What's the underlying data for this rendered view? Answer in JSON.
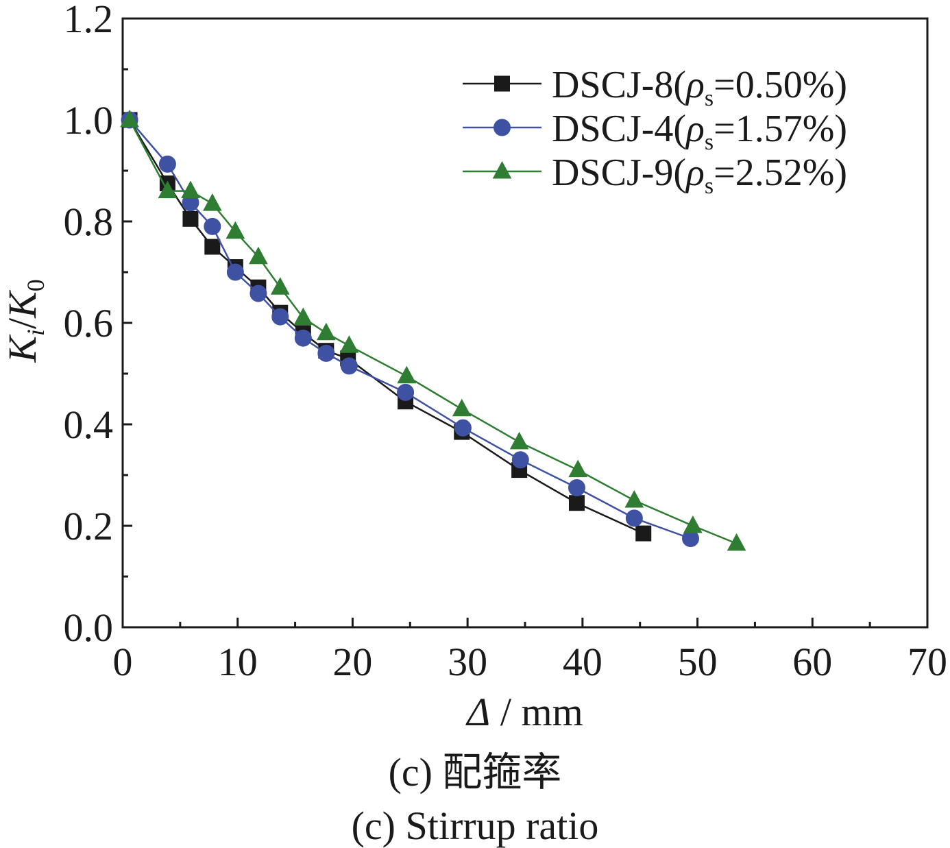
{
  "chart_data": {
    "type": "line",
    "xlabel_symbol": "Δ",
    "xlabel_unit": " / mm",
    "ylabel": {
      "K": "K",
      "sub_i": "i",
      "slash": "/",
      "K0": "K",
      "sub_0": "0"
    },
    "xlim": [
      0,
      70
    ],
    "ylim": [
      0.0,
      1.2
    ],
    "x_ticks": [
      "0",
      "10",
      "20",
      "30",
      "40",
      "50",
      "60",
      "70"
    ],
    "y_ticks": [
      "0.0",
      "0.2",
      "0.4",
      "0.6",
      "0.8",
      "1.0",
      "1.2"
    ],
    "legend_placement": "top-right",
    "grid": false,
    "series": [
      {
        "name": "DSCJ-8(ρs=0.50%)",
        "label_prefix": "DSCJ-8(",
        "label_rho": "ρ",
        "label_sub": "s",
        "label_suffix": "=0.50%)",
        "color": "#1a1a1a",
        "marker": "square",
        "x": [
          0.6,
          3.9,
          5.9,
          7.8,
          9.8,
          11.8,
          13.7,
          15.7,
          17.7,
          19.6,
          24.6,
          29.5,
          34.5,
          39.5,
          45.3
        ],
        "y": [
          1.0,
          0.875,
          0.805,
          0.75,
          0.71,
          0.67,
          0.62,
          0.58,
          0.545,
          0.53,
          0.445,
          0.385,
          0.31,
          0.245,
          0.185
        ]
      },
      {
        "name": "DSCJ-4(ρs=1.57%)",
        "label_prefix": "DSCJ-4(",
        "label_rho": "ρ",
        "label_sub": "s",
        "label_suffix": "=1.57%)",
        "color": "#3f51a3",
        "marker": "circle",
        "x": [
          0.6,
          3.9,
          5.9,
          7.8,
          9.8,
          11.8,
          13.7,
          15.7,
          17.7,
          19.7,
          24.6,
          29.6,
          34.6,
          39.5,
          44.5,
          49.4
        ],
        "y": [
          1.0,
          0.913,
          0.837,
          0.79,
          0.7,
          0.658,
          0.612,
          0.57,
          0.54,
          0.515,
          0.463,
          0.393,
          0.33,
          0.275,
          0.215,
          0.175
        ]
      },
      {
        "name": "DSCJ-9(ρs=2.52%)",
        "label_prefix": "DSCJ-9(",
        "label_rho": "ρ",
        "label_sub": "s",
        "label_suffix": "=2.52%)",
        "color": "#2e7d32",
        "marker": "triangle",
        "x": [
          0.6,
          3.9,
          5.9,
          7.8,
          9.8,
          11.8,
          13.7,
          15.7,
          17.7,
          19.7,
          24.7,
          29.5,
          34.5,
          39.6,
          44.5,
          49.6,
          53.4
        ],
        "y": [
          1.0,
          0.86,
          0.86,
          0.835,
          0.78,
          0.73,
          0.67,
          0.61,
          0.58,
          0.555,
          0.495,
          0.43,
          0.365,
          0.31,
          0.25,
          0.2,
          0.165
        ]
      }
    ]
  },
  "captions": {
    "chinese": "(c) 配箍率",
    "english": "(c) Stirrup ratio"
  }
}
